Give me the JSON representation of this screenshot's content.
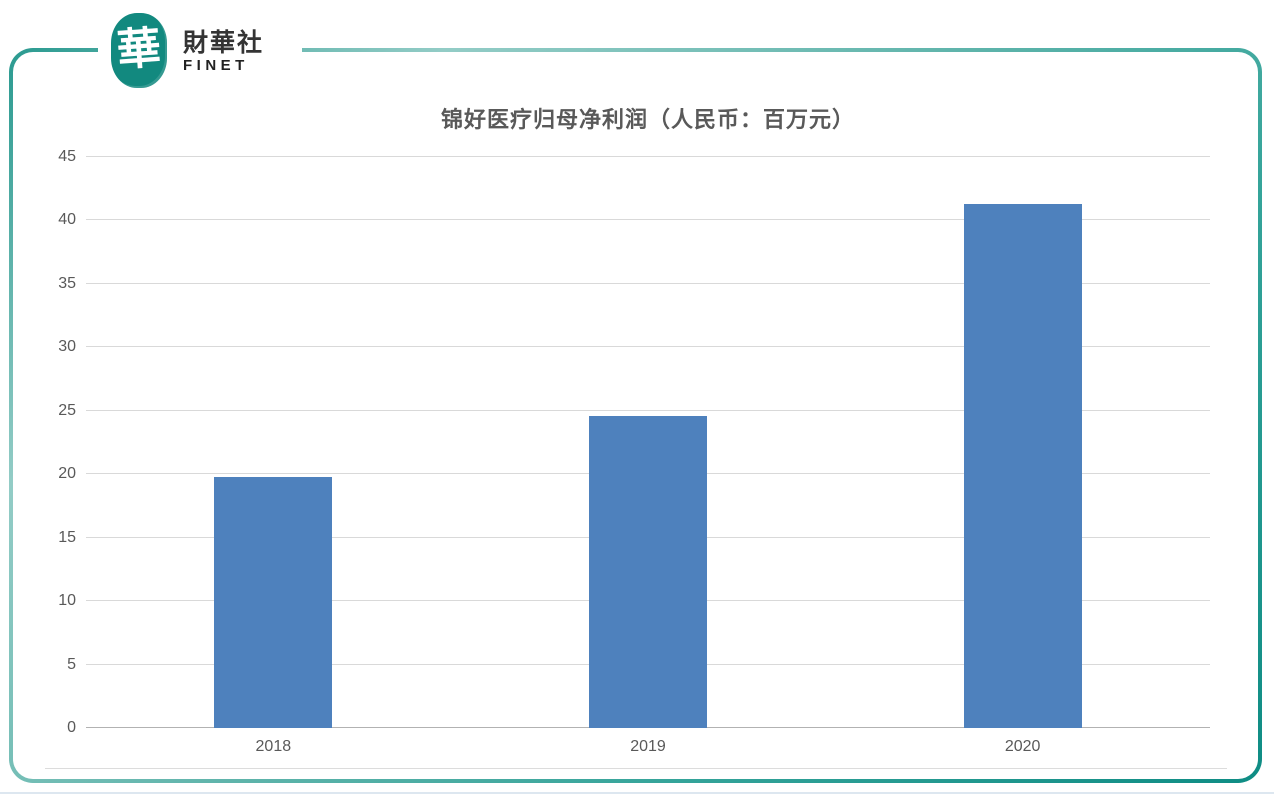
{
  "brand": {
    "seal_char": "華",
    "name_cn": "財華社",
    "name_en": "FINET"
  },
  "colors": {
    "bar": "#4E81BD",
    "frame_teal_dark": "#0E8C84",
    "frame_teal_light": "#93CCC6",
    "gridline": "#D9D9D9",
    "axis_line": "#B2B2B2",
    "label_text": "#595959"
  },
  "chart_data": {
    "type": "bar",
    "title": "锦好医疗归母净利润（人民币：百万元）",
    "categories": [
      "2018",
      "2019",
      "2020"
    ],
    "values": [
      19.8,
      24.6,
      41.3
    ],
    "xlabel": "",
    "ylabel": "",
    "ylim": [
      0,
      45
    ],
    "ytick_step": 5,
    "grid": true,
    "legend_position": "none",
    "bar_color": "#4E81BD"
  }
}
